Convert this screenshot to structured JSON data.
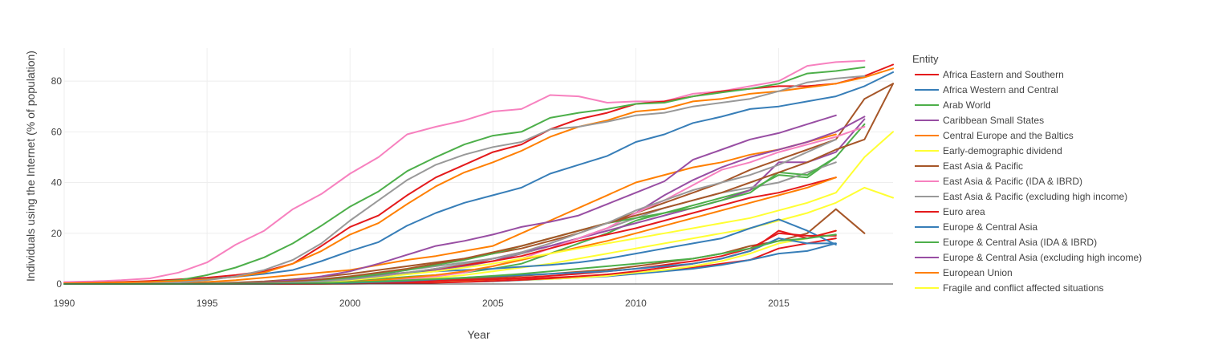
{
  "chart_data": {
    "type": "line",
    "title": "",
    "xlabel": "Year",
    "ylabel": "Individuals using the Internet (% of population)",
    "xlim": [
      1990,
      2019
    ],
    "ylim": [
      0,
      93
    ],
    "x_ticks": [
      1990,
      1995,
      2000,
      2005,
      2010,
      2015
    ],
    "y_ticks": [
      0,
      20,
      40,
      60,
      80
    ],
    "grid": true,
    "legend_title": "Entity",
    "legend_position": "right",
    "x": [
      1990,
      1991,
      1992,
      1993,
      1994,
      1995,
      1996,
      1997,
      1998,
      1999,
      2000,
      2001,
      2002,
      2003,
      2004,
      2005,
      2006,
      2007,
      2008,
      2009,
      2010,
      2011,
      2012,
      2013,
      2014,
      2015,
      2016,
      2017,
      2018,
      2019
    ],
    "series": [
      {
        "name": "Africa Eastern and Southern",
        "color": "#e41a1c",
        "values": [
          0,
          0,
          0,
          0,
          0,
          0.01,
          0.05,
          0.1,
          0.15,
          0.25,
          0.4,
          0.6,
          0.8,
          1.0,
          1.3,
          1.6,
          2.0,
          2.5,
          3.0,
          3.5,
          4.5,
          5.5,
          6.5,
          8.0,
          9.5,
          14,
          16,
          18,
          null,
          null
        ]
      },
      {
        "name": "Africa Western and Central",
        "color": "#377eb8",
        "values": [
          0,
          0,
          0,
          0,
          0,
          0,
          0.01,
          0.02,
          0.05,
          0.1,
          0.15,
          0.25,
          0.4,
          0.6,
          0.8,
          1.0,
          1.5,
          2.0,
          2.5,
          3.0,
          4.0,
          5.0,
          6.0,
          7.5,
          9.5,
          12,
          13,
          16,
          null,
          null
        ]
      },
      {
        "name": "Arab World",
        "color": "#4daf4a",
        "values": [
          0,
          0,
          0,
          0,
          0,
          0.02,
          0.05,
          0.1,
          0.3,
          0.6,
          1.2,
          2.0,
          2.8,
          3.5,
          4.5,
          6.0,
          8.0,
          12,
          16,
          20,
          25,
          28,
          31,
          34,
          37,
          43,
          42,
          50,
          63,
          null
        ]
      },
      {
        "name": "Caribbean Small States",
        "color": "#984ea3",
        "values": [
          0,
          0,
          0,
          0,
          0,
          0.1,
          0.3,
          0.6,
          1.0,
          1.6,
          2.5,
          3.5,
          4.5,
          5.5,
          7.0,
          9.0,
          12,
          15,
          18,
          21,
          24,
          27,
          30,
          33,
          37,
          48,
          48,
          52,
          65,
          null
        ]
      },
      {
        "name": "Central Europe and the Baltics",
        "color": "#ff7f00",
        "values": [
          0,
          0,
          0,
          0,
          0.3,
          0.8,
          1.5,
          2.5,
          3.5,
          4.5,
          5.5,
          7.5,
          9.5,
          11,
          13,
          15,
          20,
          25,
          30,
          35,
          40,
          43,
          46,
          48,
          51,
          53,
          56,
          59,
          null,
          null
        ]
      },
      {
        "name": "Early-demographic dividend",
        "color": "#ffff33",
        "values": [
          0,
          0,
          0,
          0,
          0,
          0,
          0.05,
          0.1,
          0.2,
          0.4,
          0.8,
          1.2,
          1.8,
          2.5,
          3.5,
          5.0,
          6.5,
          8.0,
          10,
          12,
          14,
          16,
          18,
          20,
          22,
          25,
          28,
          32,
          38,
          34
        ]
      },
      {
        "name": "East Asia & Pacific",
        "color": "#a65628",
        "values": [
          0,
          0,
          0,
          0,
          0.1,
          0.3,
          0.6,
          1.0,
          1.8,
          2.8,
          4.0,
          5.5,
          7.0,
          8.5,
          10,
          12,
          14,
          17,
          20,
          24,
          28,
          32,
          36,
          40,
          45,
          49,
          53,
          57,
          73,
          79
        ]
      },
      {
        "name": "East Asia & Pacific (IDA & IBRD)",
        "color": "#f781bf",
        "values": [
          0.8,
          1.0,
          1.5,
          2.2,
          4.5,
          8.5,
          15.5,
          21,
          29.5,
          35.5,
          43.5,
          50,
          59,
          62,
          64.5,
          68,
          69,
          74.5,
          74,
          71.5,
          72,
          72,
          75,
          76,
          78,
          80,
          86,
          87.5,
          88,
          null
        ]
      },
      {
        "name": "East Asia & Pacific (excluding high income)",
        "color": "#999999",
        "values": [
          0,
          0,
          0,
          0,
          0.1,
          0.2,
          0.4,
          0.8,
          1.3,
          2.0,
          3.0,
          4.0,
          5.5,
          7.0,
          8.5,
          10,
          12,
          15,
          18,
          22,
          26,
          30,
          33,
          36,
          38,
          40,
          44,
          48,
          null,
          null
        ]
      },
      {
        "name": "Euro area",
        "color": "#e41a1c",
        "values": [
          0.3,
          0.5,
          0.8,
          1.2,
          1.8,
          2.5,
          3.5,
          5.0,
          8.0,
          15,
          22.5,
          27,
          35,
          42,
          47,
          52,
          55,
          61,
          65,
          67.5,
          71,
          72,
          74,
          76,
          77,
          78,
          78,
          79,
          82,
          86.5
        ]
      },
      {
        "name": "Europe & Central Asia",
        "color": "#377eb8",
        "values": [
          0.2,
          0.3,
          0.5,
          0.8,
          1.2,
          2.0,
          2.8,
          4.0,
          5.5,
          9.0,
          13,
          16.5,
          23,
          28,
          32,
          35,
          38,
          43.5,
          47,
          50.5,
          56,
          59,
          63.5,
          66,
          69,
          70,
          72,
          74,
          78,
          83.5
        ]
      },
      {
        "name": "Europe & Central Asia (IDA & IBRD)",
        "color": "#4daf4a",
        "values": [
          0.1,
          0.2,
          0.4,
          0.8,
          1.5,
          3.5,
          6.5,
          10.5,
          16,
          23,
          30.5,
          36.5,
          44.5,
          50,
          55,
          58.5,
          60,
          65.5,
          67.5,
          69,
          71,
          71.5,
          74,
          75.5,
          77,
          79,
          83,
          84,
          85.5,
          null
        ]
      },
      {
        "name": "Europe & Central Asia (excluding high income)",
        "color": "#984ea3",
        "values": [
          0,
          0,
          0,
          0,
          0,
          0.1,
          0.3,
          0.6,
          1.0,
          1.6,
          2.5,
          3.5,
          4.5,
          6.0,
          7.5,
          10,
          12.5,
          15,
          18,
          22,
          28,
          35,
          41,
          46,
          50,
          53,
          56,
          60,
          66,
          null
        ]
      },
      {
        "name": "European Union",
        "color": "#ff7f00",
        "values": [
          0.3,
          0.4,
          0.6,
          0.8,
          1.2,
          1.8,
          2.8,
          4.5,
          8.0,
          13,
          19.5,
          24,
          31.5,
          38.5,
          44,
          48,
          52.5,
          58,
          62,
          64.5,
          68,
          69,
          72,
          73,
          75,
          76,
          77.5,
          79,
          81.5,
          85
        ]
      },
      {
        "name": "Fragile and conflict affected situations",
        "color": "#ffff33",
        "values": [
          0,
          0,
          0,
          0,
          0,
          0,
          0.01,
          0.02,
          0.05,
          0.1,
          0.15,
          0.25,
          0.4,
          0.6,
          0.9,
          1.2,
          1.6,
          2.0,
          2.5,
          3.2,
          4.5,
          5.5,
          7.0,
          9.0,
          12,
          16,
          18,
          21,
          null,
          null
        ]
      },
      {
        "name": "",
        "color": "#a65628",
        "values": [
          0,
          0,
          0,
          0,
          0,
          0,
          0.02,
          0.05,
          0.1,
          0.2,
          0.4,
          0.7,
          1.0,
          1.5,
          2.0,
          2.5,
          3.2,
          4.0,
          4.8,
          5.6,
          7.0,
          8.5,
          10,
          12,
          15,
          17,
          20,
          29.5,
          20,
          null
        ]
      },
      {
        "name": "",
        "color": "#f781bf",
        "values": [
          0,
          0,
          0,
          0,
          0,
          0.05,
          0.1,
          0.2,
          0.3,
          0.5,
          0.8,
          1.2,
          2.0,
          3.0,
          4.5,
          7.0,
          10,
          14,
          18,
          22,
          28,
          33,
          39,
          45,
          48,
          52,
          55,
          58,
          62,
          null
        ]
      },
      {
        "name": "",
        "color": "#999999",
        "values": [
          0,
          0,
          0,
          0.2,
          0.6,
          1.5,
          3.0,
          5.5,
          9.5,
          16,
          25,
          33,
          41,
          47,
          51,
          54,
          56,
          61,
          62,
          64,
          66.5,
          67.5,
          70,
          71.5,
          73,
          76,
          79.5,
          81,
          82,
          null
        ]
      },
      {
        "name": "",
        "color": "#e41a1c",
        "values": [
          0,
          0,
          0,
          0,
          0,
          0.1,
          0.2,
          0.3,
          0.5,
          0.8,
          1.5,
          2.5,
          4.0,
          6.0,
          7.5,
          9.0,
          11,
          14,
          17,
          19.5,
          22,
          25,
          28,
          31,
          34,
          36,
          39,
          42,
          null,
          null
        ]
      },
      {
        "name": "",
        "color": "#377eb8",
        "values": [
          0,
          0,
          0,
          0,
          0,
          0.1,
          0.2,
          0.4,
          0.7,
          1.2,
          2.0,
          3.0,
          4.2,
          5.0,
          5.5,
          6.0,
          6.8,
          7.5,
          8.5,
          10,
          12,
          14,
          16,
          18,
          22,
          25.5,
          21,
          15.5,
          null,
          null
        ]
      },
      {
        "name": "",
        "color": "#4daf4a",
        "values": [
          0,
          0,
          0,
          0,
          0,
          0.1,
          0.3,
          0.6,
          1.0,
          1.6,
          2.5,
          3.8,
          5.5,
          7.5,
          9.5,
          12,
          15,
          18,
          21,
          24,
          26,
          28,
          30,
          33,
          36,
          44,
          43,
          50,
          null,
          null
        ]
      },
      {
        "name": "",
        "color": "#984ea3",
        "values": [
          0,
          0,
          0,
          0,
          0,
          0.1,
          0.3,
          0.7,
          1.5,
          3.0,
          5.0,
          8.0,
          11.5,
          15,
          17,
          19.5,
          22.5,
          24.5,
          27,
          31.5,
          36,
          40.5,
          49,
          53,
          57,
          59.5,
          63,
          66.5,
          null,
          null
        ]
      },
      {
        "name": "",
        "color": "#ff7f00",
        "values": [
          0,
          0,
          0,
          0,
          0,
          0,
          0.05,
          0.1,
          0.2,
          0.4,
          0.8,
          1.5,
          2.5,
          3.5,
          5.0,
          7.0,
          9.5,
          12,
          14.5,
          17,
          20,
          23,
          26,
          29,
          32,
          35,
          38,
          42,
          null,
          null
        ]
      },
      {
        "name": "",
        "color": "#ffff33",
        "values": [
          0,
          0,
          0,
          0,
          0,
          0,
          0.1,
          0.2,
          0.4,
          0.8,
          1.5,
          2.5,
          3.8,
          5.0,
          6.5,
          8.0,
          10,
          12,
          14,
          16,
          18,
          20,
          22,
          24,
          26,
          29,
          32,
          36,
          50,
          60
        ]
      },
      {
        "name": "",
        "color": "#a65628",
        "values": [
          0,
          0,
          0,
          0,
          0,
          0.1,
          0.3,
          0.6,
          1.0,
          1.8,
          3.0,
          4.5,
          6.0,
          8.0,
          10,
          12.5,
          15,
          18,
          21,
          24,
          27,
          30,
          33,
          36,
          40,
          44,
          48,
          53,
          57,
          79
        ]
      },
      {
        "name": "",
        "color": "#999999",
        "values": [
          0,
          0,
          0,
          0,
          0,
          0.05,
          0.1,
          0.3,
          0.6,
          1.0,
          1.8,
          3.0,
          4.5,
          6.0,
          8.0,
          10,
          12.5,
          16,
          20,
          24,
          29,
          33,
          37,
          40,
          43,
          47,
          52,
          57,
          null,
          null
        ]
      },
      {
        "name": "",
        "color": "#e41a1c",
        "values": [
          0,
          0,
          0,
          0,
          0,
          0,
          0.01,
          0.02,
          0.04,
          0.06,
          0.1,
          0.2,
          0.3,
          0.5,
          0.8,
          1.2,
          1.6,
          2.2,
          3.0,
          3.8,
          5.0,
          6.5,
          8.0,
          10,
          13,
          21,
          18,
          21,
          null,
          null
        ]
      },
      {
        "name": "",
        "color": "#e41a1c",
        "values": [
          0,
          0,
          0,
          0,
          0,
          0,
          0.01,
          0.02,
          0.05,
          0.1,
          0.3,
          0.5,
          0.8,
          1.2,
          1.6,
          2.0,
          2.5,
          3.2,
          4.0,
          5.0,
          6.0,
          7.5,
          9.0,
          11,
          14,
          20,
          19,
          19,
          null,
          null
        ]
      },
      {
        "name": "",
        "color": "#377eb8",
        "values": [
          0,
          0,
          0,
          0,
          0,
          0.02,
          0.05,
          0.1,
          0.2,
          0.3,
          0.5,
          0.8,
          1.2,
          1.8,
          2.5,
          3.0,
          3.5,
          4.0,
          4.5,
          5.0,
          6.0,
          7.0,
          8.0,
          10,
          13,
          18,
          16,
          16,
          null,
          null
        ]
      },
      {
        "name": "",
        "color": "#4daf4a",
        "values": [
          0,
          0,
          0,
          0,
          0,
          0.02,
          0.05,
          0.1,
          0.2,
          0.4,
          0.7,
          1.0,
          1.5,
          2.0,
          2.5,
          3.2,
          4.0,
          5.0,
          6.0,
          7.0,
          8.0,
          9.0,
          10,
          12,
          14,
          17,
          18,
          19.5,
          null,
          null
        ]
      }
    ]
  }
}
